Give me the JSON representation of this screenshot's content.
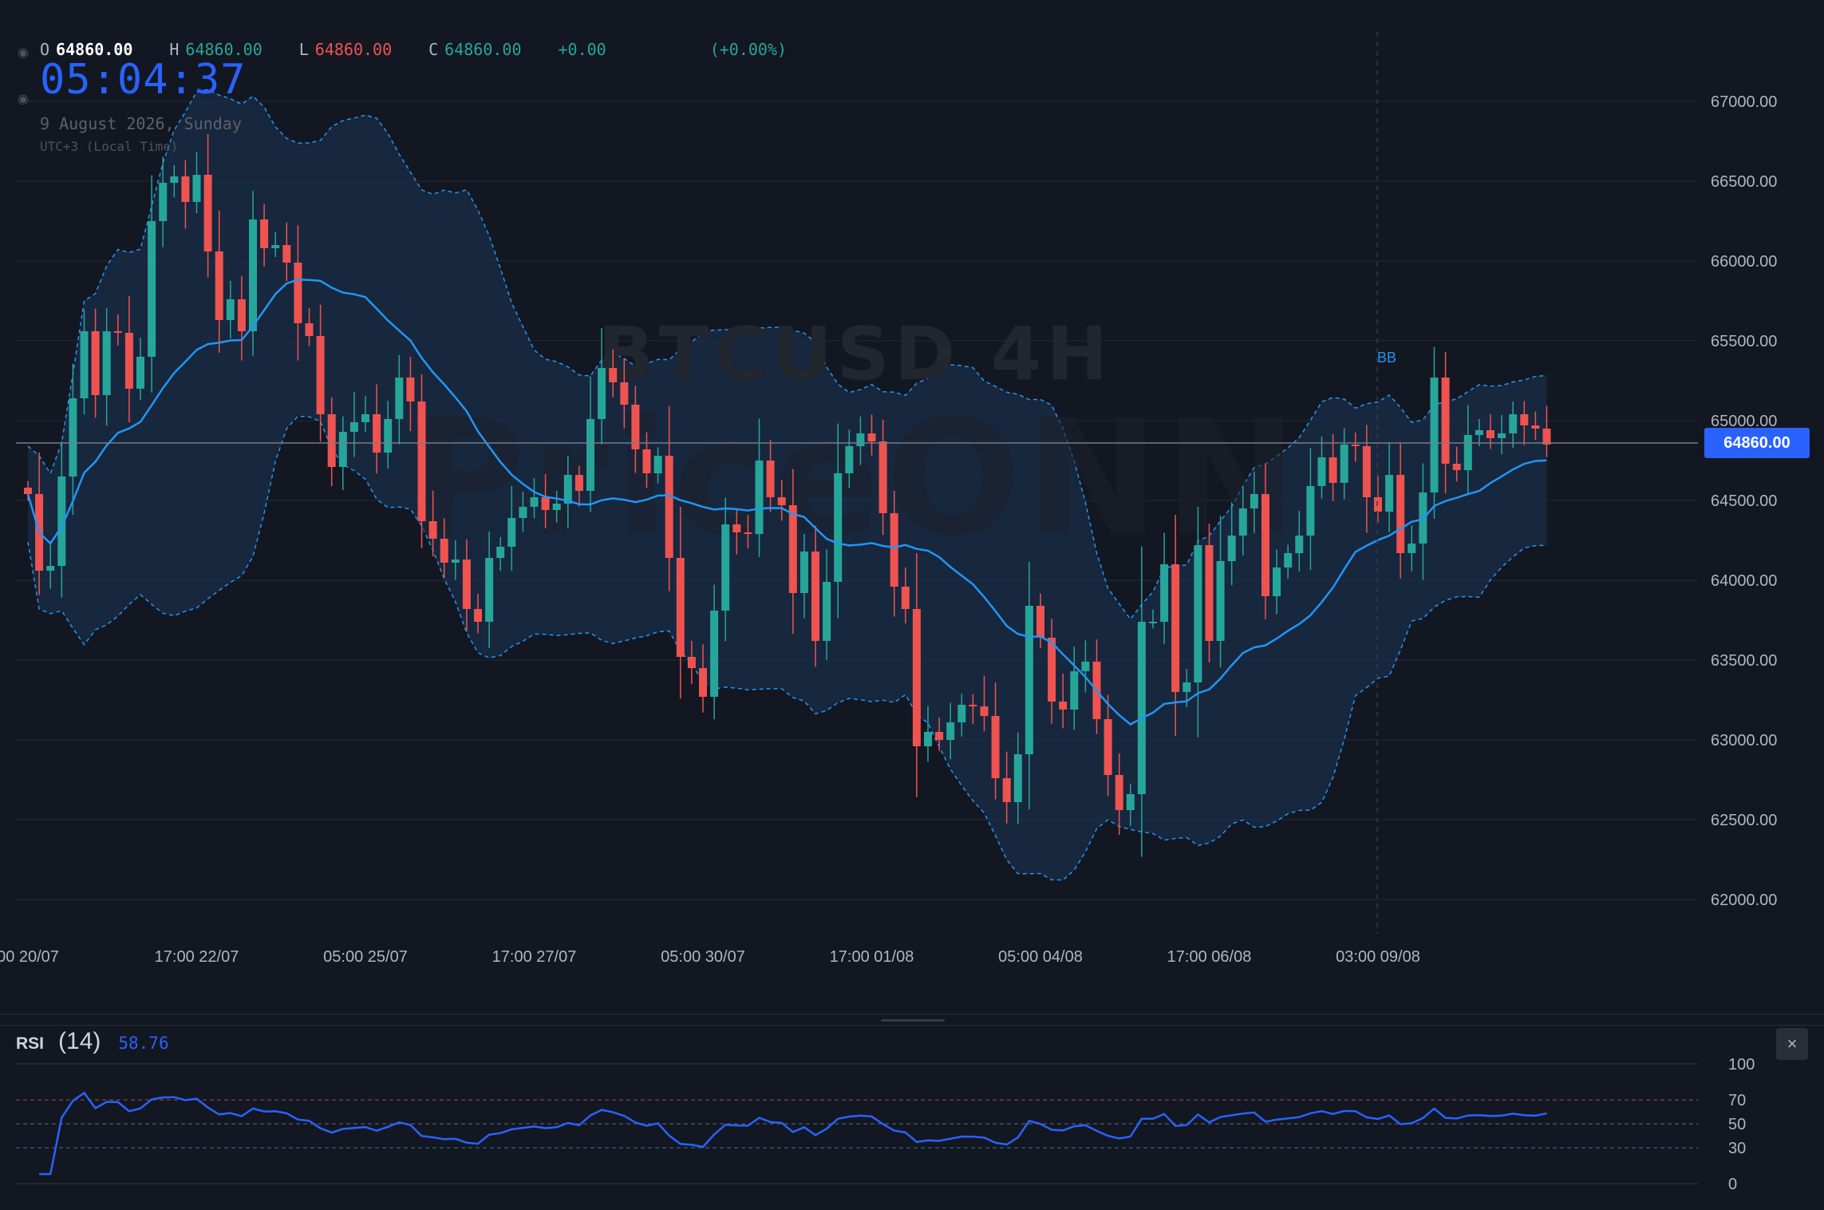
{
  "ohlc": {
    "open_label": "O",
    "open": "64860.00",
    "high_label": "H",
    "high": "64860.00",
    "low_label": "L",
    "low": "64860.00",
    "close_label": "C",
    "close": "64860.00",
    "change": "+0.00",
    "change_pct": "(+0.00%)"
  },
  "clock": {
    "time": "05:04:37",
    "date": "9 August 2026, Sunday",
    "timezone": "UTC+3 (Local Time)"
  },
  "watermark": {
    "symbol": "BTCUSD 4H",
    "brand": "PriceONN"
  },
  "price_tag": "64860.00",
  "bb_label": "BB",
  "rsi": {
    "title": "RSI",
    "period": "(14)",
    "value": "58.76",
    "close_symbol": "×"
  },
  "colors": {
    "background": "#131722",
    "up": "#26a69a",
    "down": "#ef5350",
    "ma": "#2196f3",
    "band": "#1b3556",
    "rsi": "#2962ff",
    "price_line_tag": "#2962ff"
  },
  "icons": {
    "visibility": "eye-icon",
    "close": "close-icon"
  },
  "chart_data": [
    {
      "type": "candlestick",
      "title": "BTCUSD 4H",
      "y_axis_ticks": [
        "67000.00",
        "66500.00",
        "66000.00",
        "65500.00",
        "65000.00",
        "64500.00",
        "64000.00",
        "63500.00",
        "63000.00",
        "62500.00",
        "62000.00"
      ],
      "ylim": [
        61850,
        67500
      ],
      "x_axis_ticks": [
        "00 20/07",
        "17:00 22/07",
        "05:00 25/07",
        "17:00 27/07",
        "05:00 30/07",
        "17:00 01/08",
        "05:00 04/08",
        "17:00 06/08",
        "03:00 09/08"
      ],
      "x_tick_bar_index": [
        0,
        15,
        30,
        45,
        60,
        75,
        90,
        105,
        120
      ],
      "current_price": 64860,
      "close": [
        64540,
        64060,
        64090,
        64650,
        65140,
        65560,
        65160,
        65560,
        65550,
        65200,
        65400,
        66250,
        66490,
        66530,
        66370,
        66540,
        66060,
        65630,
        65760,
        65560,
        66260,
        66080,
        66100,
        65990,
        65610,
        65530,
        65040,
        64710,
        64930,
        64990,
        65040,
        64800,
        65010,
        65270,
        65120,
        64370,
        64260,
        64110,
        64130,
        63820,
        63740,
        64140,
        64210,
        64390,
        64460,
        64520,
        64440,
        64480,
        64660,
        64560,
        65010,
        65330,
        65240,
        65100,
        64820,
        64670,
        64780,
        64140,
        63520,
        63450,
        63270,
        63810,
        64350,
        64300,
        64290,
        64750,
        64520,
        64470,
        63920,
        64180,
        63620,
        63990,
        64670,
        64840,
        64920,
        64870,
        64420,
        63960,
        63820,
        62960,
        63050,
        63000,
        63110,
        63220,
        63210,
        63150,
        62760,
        62610,
        62910,
        63840,
        63640,
        63240,
        63190,
        63430,
        63490,
        63130,
        62780,
        62560,
        62660,
        63740,
        63740,
        64100,
        63300,
        63360,
        64220,
        63620,
        64120,
        64280,
        64450,
        64540,
        63900,
        64080,
        64170,
        64280,
        64590,
        64770,
        64610,
        64850,
        64840,
        64520,
        64430,
        64660,
        64170,
        64230,
        64550,
        65270,
        64730,
        64690,
        64910,
        64940,
        64890,
        64920,
        65040,
        64970,
        64950,
        64850
      ],
      "moving_average_pct_of_candle_series": "20-period basis",
      "rsi": {
        "period": 14,
        "levels": [
          100,
          70,
          50,
          30,
          0
        ],
        "ylim": [
          0,
          100
        ],
        "last_value": 58.76
      }
    }
  ]
}
